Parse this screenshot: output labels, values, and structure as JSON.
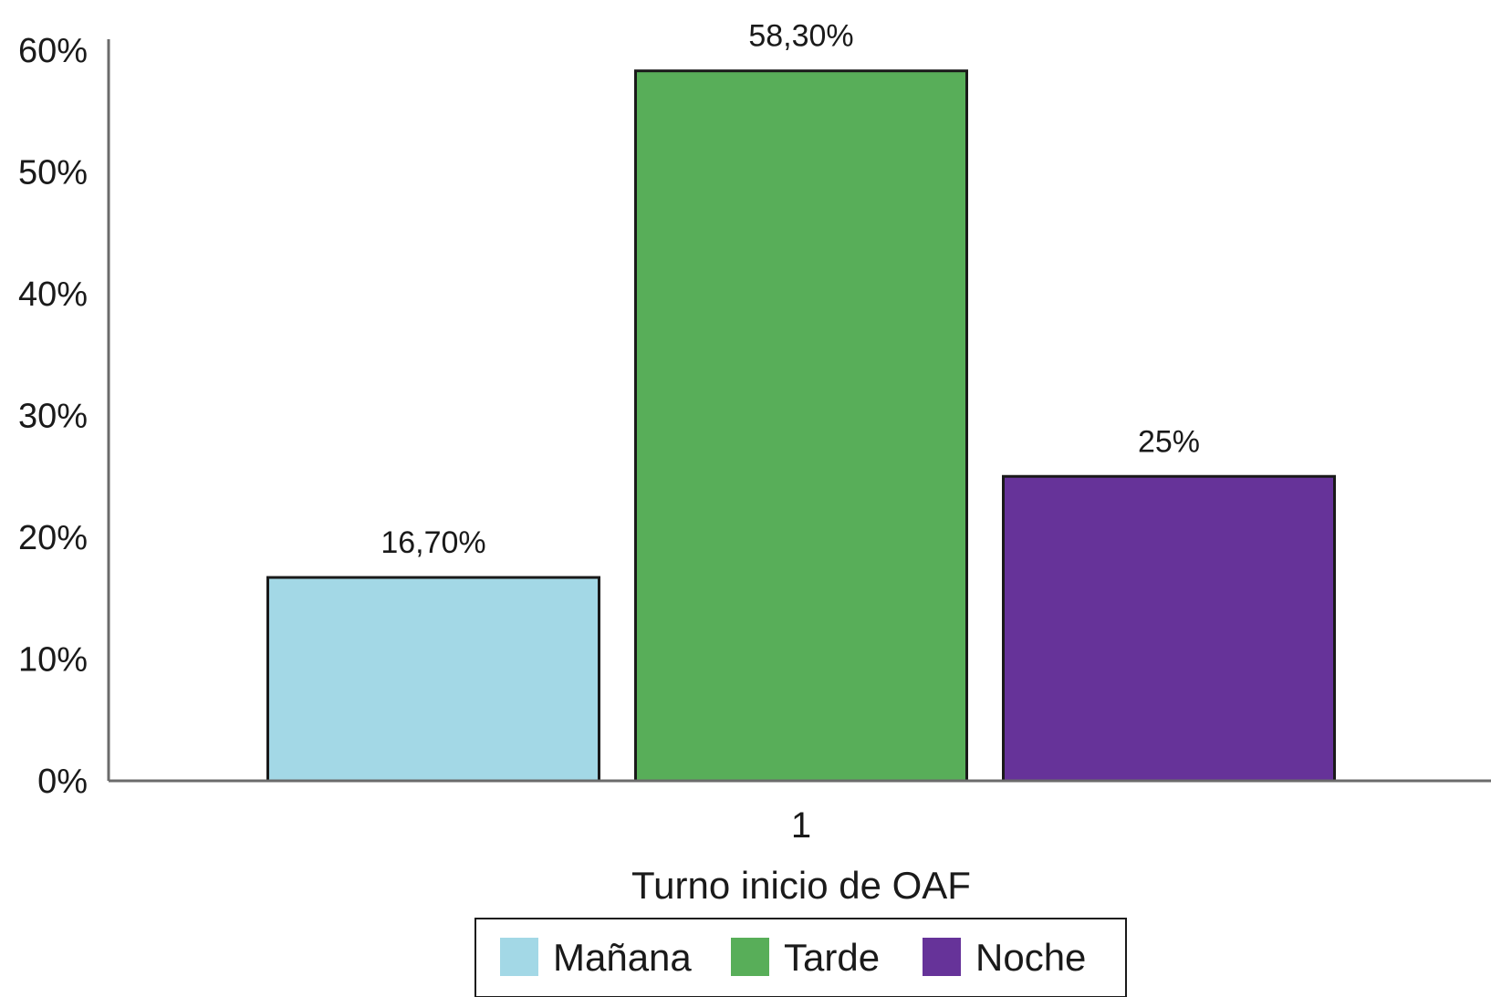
{
  "chart_data": {
    "type": "bar",
    "categories": [
      "1"
    ],
    "series": [
      {
        "name": "Mañana",
        "values": [
          16.7
        ],
        "color": "#a3d8e6",
        "label": "16,70%"
      },
      {
        "name": "Tarde",
        "values": [
          58.3
        ],
        "color": "#58ae59",
        "label": "58,30%"
      },
      {
        "name": "Noche",
        "values": [
          25.0
        ],
        "color": "#663399",
        "label": "25%"
      }
    ],
    "title": "",
    "xlabel": "Turno inicio de OAF",
    "ylabel": "",
    "ylim": [
      0,
      60
    ],
    "yticks": [
      "0%",
      "10%",
      "20%",
      "30%",
      "40%",
      "50%",
      "60%"
    ],
    "grid": false,
    "legend_position": "bottom-center"
  }
}
